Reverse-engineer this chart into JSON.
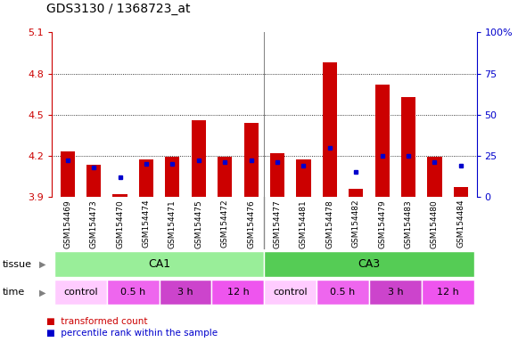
{
  "title": "GDS3130 / 1368723_at",
  "samples": [
    "GSM154469",
    "GSM154473",
    "GSM154470",
    "GSM154474",
    "GSM154471",
    "GSM154475",
    "GSM154472",
    "GSM154476",
    "GSM154477",
    "GSM154481",
    "GSM154478",
    "GSM154482",
    "GSM154479",
    "GSM154483",
    "GSM154480",
    "GSM154484"
  ],
  "transformed_count": [
    4.23,
    4.13,
    3.92,
    4.17,
    4.19,
    4.46,
    4.19,
    4.44,
    4.22,
    4.17,
    4.88,
    3.96,
    4.72,
    4.63,
    4.19,
    3.97
  ],
  "percentile_rank": [
    22,
    18,
    12,
    20,
    20,
    22,
    21,
    22,
    21,
    19,
    30,
    15,
    25,
    25,
    21,
    19
  ],
  "ymin": 3.9,
  "ymax": 5.1,
  "y_ticks": [
    3.9,
    4.2,
    4.5,
    4.8,
    5.1
  ],
  "y2min": 0,
  "y2max": 100,
  "y2_ticks": [
    0,
    25,
    50,
    75,
    100
  ],
  "y2_tick_labels": [
    "0",
    "25",
    "50",
    "75",
    "100%"
  ],
  "bar_color": "#cc0000",
  "dot_color": "#0000cc",
  "tissue_spans": [
    {
      "label": "CA1",
      "start": 0,
      "end": 8,
      "color": "#99ee99"
    },
    {
      "label": "CA3",
      "start": 8,
      "end": 16,
      "color": "#55cc55"
    }
  ],
  "time_spans": [
    {
      "label": "control",
      "start": 0,
      "end": 2,
      "color": "#ffccff"
    },
    {
      "label": "0.5 h",
      "start": 2,
      "end": 4,
      "color": "#ee66ee"
    },
    {
      "label": "3 h",
      "start": 4,
      "end": 6,
      "color": "#cc44cc"
    },
    {
      "label": "12 h",
      "start": 6,
      "end": 8,
      "color": "#ee55ee"
    },
    {
      "label": "control",
      "start": 8,
      "end": 10,
      "color": "#ffccff"
    },
    {
      "label": "0.5 h",
      "start": 10,
      "end": 12,
      "color": "#ee66ee"
    },
    {
      "label": "3 h",
      "start": 12,
      "end": 14,
      "color": "#cc44cc"
    },
    {
      "label": "12 h",
      "start": 14,
      "end": 16,
      "color": "#ee55ee"
    }
  ],
  "bg_color": "#ffffff",
  "axis_color_left": "#cc0000",
  "axis_color_right": "#0000cc",
  "xtick_bg": "#cccccc",
  "separator_color": "#888888"
}
